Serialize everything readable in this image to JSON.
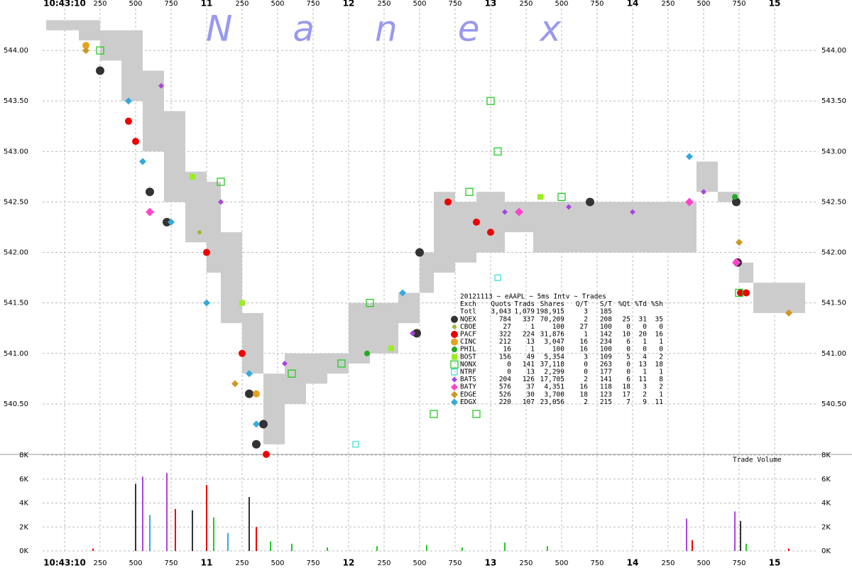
{
  "chart_data": {
    "type": "scatter",
    "watermark": "Nanex",
    "xlim": [
      9.845,
      15.295
    ],
    "xticks": [
      {
        "value": 10,
        "label": "10:43:10"
      },
      {
        "value": 10.25,
        "label": "250"
      },
      {
        "value": 10.5,
        "label": "500"
      },
      {
        "value": 10.75,
        "label": "750"
      },
      11,
      {
        "value": 11.25,
        "label": "250"
      },
      {
        "value": 11.5,
        "label": "500"
      },
      {
        "value": 11.75,
        "label": "750"
      },
      12,
      {
        "value": 12.25,
        "label": "250"
      },
      {
        "value": 12.5,
        "label": "500"
      },
      {
        "value": 12.75,
        "label": "750"
      },
      13,
      {
        "value": 13.25,
        "label": "250"
      },
      {
        "value": 13.5,
        "label": "500"
      },
      {
        "value": 13.75,
        "label": "750"
      },
      14,
      {
        "value": 14.25,
        "label": "250"
      },
      {
        "value": 14.5,
        "label": "500"
      },
      {
        "value": 14.75,
        "label": "750"
      },
      15
    ],
    "ylim": [
      540.0,
      544.5
    ],
    "yticks": [
      {
        "value": 540.5,
        "label": "540.50"
      },
      {
        "value": 541,
        "label": "541.00"
      },
      {
        "value": 541.5,
        "label": "541.50"
      },
      {
        "value": 542,
        "label": "542.00"
      },
      {
        "value": 542.5,
        "label": "542.50"
      },
      {
        "value": 543,
        "label": "543.00"
      },
      {
        "value": 543.5,
        "label": "543.50"
      },
      {
        "value": 544,
        "label": "544.00"
      }
    ],
    "grid": true,
    "spread": {
      "color": "#cccccc",
      "x": [
        9.87,
        10.1,
        10.25,
        10.4,
        10.55,
        10.7,
        10.85,
        11.0,
        11.1,
        11.25,
        11.4,
        11.55,
        11.7,
        11.85,
        12.0,
        12.15,
        12.35,
        12.5,
        12.6,
        12.75,
        12.9,
        13.1,
        13.3,
        13.5,
        13.7,
        13.9,
        14.1,
        14.35,
        14.45,
        14.6,
        14.75,
        14.85,
        15.0,
        15.2
      ],
      "ask": [
        544.3,
        544.3,
        544.2,
        544.2,
        543.8,
        543.4,
        542.8,
        542.7,
        542.2,
        541.4,
        540.8,
        541.0,
        541.0,
        541.0,
        541.5,
        541.5,
        541.6,
        542.0,
        542.6,
        542.5,
        542.6,
        542.5,
        542.5,
        542.5,
        542.5,
        542.5,
        542.5,
        542.5,
        542.9,
        542.6,
        541.9,
        541.7,
        541.7,
        541.7
      ],
      "bid": [
        544.2,
        544.1,
        543.9,
        543.5,
        543.0,
        542.5,
        542.1,
        541.8,
        541.3,
        540.8,
        540.1,
        540.5,
        540.7,
        540.8,
        540.9,
        541.0,
        541.3,
        541.6,
        541.8,
        541.9,
        542.0,
        542.2,
        542.0,
        542.0,
        542.0,
        542.0,
        542.0,
        542.0,
        542.6,
        542.5,
        541.7,
        541.4,
        541.4,
        541.4
      ]
    },
    "table_title": "20121113 ~ eAAPL ~ 5ms Intv ~ Trades",
    "table_header": [
      "Exch",
      "Quots",
      "Trads",
      "Shares",
      "Q/T",
      "S/T",
      "%Qt",
      "%Td",
      "%Sh"
    ],
    "table_total": [
      "Totl",
      "3,043",
      "1,079",
      "198,915",
      "3",
      "185"
    ],
    "series": [
      {
        "name": "NQEX",
        "color": "#333333",
        "marker": "circle",
        "size": 6,
        "stats": [
          "784",
          "337",
          "70,209",
          "2",
          "208",
          "25",
          "31",
          "35"
        ],
        "x": [
          10.25,
          10.6,
          10.72,
          11.3,
          11.4,
          11.35,
          12.5,
          12.48,
          13.7,
          14.73,
          14.74
        ],
        "values": [
          543.8,
          542.6,
          542.3,
          540.6,
          540.3,
          540.1,
          542.0,
          541.2,
          542.5,
          542.5,
          541.9
        ]
      },
      {
        "name": "CBOE",
        "color": "#99bb33",
        "marker": "circle",
        "size": 3,
        "stats": [
          "27",
          "1",
          "100",
          "27",
          "100",
          "0",
          "0",
          "0"
        ],
        "x": [
          10.95
        ],
        "values": [
          542.2
        ]
      },
      {
        "name": "PACF",
        "color": "#ee0000",
        "marker": "circle",
        "size": 5,
        "stats": [
          "322",
          "224",
          "31,876",
          "1",
          "142",
          "10",
          "20",
          "16"
        ],
        "x": [
          10.5,
          10.45,
          11.0,
          11.25,
          11.42,
          12.7,
          12.9,
          13.0,
          14.76,
          14.8
        ],
        "values": [
          543.1,
          543.3,
          542.0,
          541.0,
          540.0,
          542.5,
          542.3,
          542.2,
          541.6,
          541.6
        ]
      },
      {
        "name": "CINC",
        "color": "#e8a020",
        "marker": "circle",
        "size": 5,
        "stats": [
          "212",
          "13",
          "3,047",
          "16",
          "234",
          "6",
          "1",
          "1"
        ],
        "x": [
          10.15,
          11.35
        ],
        "values": [
          544.05,
          540.6
        ]
      },
      {
        "name": "PHIL",
        "color": "#22aa22",
        "marker": "circle",
        "size": 4,
        "stats": [
          "16",
          "1",
          "100",
          "16",
          "100",
          "0",
          "0",
          "0"
        ],
        "x": [
          12.13,
          14.72
        ],
        "values": [
          541.0,
          542.55
        ]
      },
      {
        "name": "BOST",
        "color": "#99ee22",
        "marker": "square",
        "size": 4,
        "stats": [
          "156",
          "49",
          "5,354",
          "3",
          "109",
          "5",
          "4",
          "2"
        ],
        "x": [
          10.9,
          11.25,
          12.3,
          13.35
        ],
        "values": [
          542.75,
          541.5,
          541.05,
          542.55
        ]
      },
      {
        "name": "NONX",
        "color": "#22cc22",
        "marker": "hollow-square",
        "size": 5,
        "stats": [
          "0",
          "141",
          "37,118",
          "0",
          "263",
          "0",
          "13",
          "18"
        ],
        "x": [
          10.25,
          11.1,
          12.15,
          12.85,
          13.0,
          13.05,
          13.5,
          12.6,
          14.75,
          12.9,
          11.6,
          11.95
        ],
        "values": [
          544.0,
          542.7,
          541.5,
          542.6,
          543.5,
          543.0,
          542.55,
          540.4,
          541.6,
          540.4,
          540.8,
          540.9
        ]
      },
      {
        "name": "NTRF",
        "color": "#44dddd",
        "marker": "hollow-square",
        "size": 4,
        "stats": [
          "0",
          "13",
          "2,299",
          "0",
          "177",
          "0",
          "1",
          "1"
        ],
        "x": [
          12.05,
          13.05
        ],
        "values": [
          540.1,
          541.75
        ]
      },
      {
        "name": "BATS",
        "color": "#aa44dd",
        "marker": "diamond",
        "size": 4,
        "stats": [
          "204",
          "126",
          "17,705",
          "2",
          "141",
          "6",
          "11",
          "8"
        ],
        "x": [
          10.68,
          11.1,
          11.55,
          12.45,
          13.1,
          13.55,
          14.0,
          14.5
        ],
        "values": [
          543.65,
          542.5,
          540.9,
          541.2,
          542.4,
          542.45,
          542.4,
          542.6
        ]
      },
      {
        "name": "BATY",
        "color": "#ff44cc",
        "marker": "diamond",
        "size": 6,
        "stats": [
          "576",
          "37",
          "4,351",
          "16",
          "118",
          "18",
          "3",
          "2"
        ],
        "x": [
          10.6,
          13.2,
          14.4,
          14.73
        ],
        "values": [
          542.4,
          542.4,
          542.5,
          541.9
        ]
      },
      {
        "name": "EDGE",
        "color": "#cc9922",
        "marker": "diamond",
        "size": 5,
        "stats": [
          "526",
          "30",
          "3,700",
          "18",
          "123",
          "17",
          "2",
          "1"
        ],
        "x": [
          10.15,
          11.2,
          14.75,
          15.1
        ],
        "values": [
          544.0,
          540.7,
          542.1,
          541.4
        ]
      },
      {
        "name": "EDGX",
        "color": "#33aadd",
        "marker": "diamond",
        "size": 5,
        "stats": [
          "220",
          "107",
          "23,056",
          "2",
          "215",
          "7",
          "9",
          "11"
        ],
        "x": [
          10.45,
          10.55,
          10.75,
          11.0,
          11.3,
          11.35,
          12.38,
          14.4
        ],
        "values": [
          543.5,
          542.9,
          542.3,
          541.5,
          540.8,
          540.3,
          541.6,
          542.95
        ]
      }
    ],
    "volume": {
      "label": "Trade Volume",
      "ylim": [
        0,
        8000
      ],
      "yticks": [
        {
          "value": 0,
          "label": "0K"
        },
        {
          "value": 2000,
          "label": "2K"
        },
        {
          "value": 4000,
          "label": "4K"
        },
        {
          "value": 6000,
          "label": "6K"
        },
        {
          "value": 8000,
          "label": "8K"
        }
      ],
      "x": [
        10.2,
        10.5,
        10.55,
        10.6,
        10.72,
        10.78,
        10.9,
        11.0,
        11.05,
        11.15,
        11.3,
        11.35,
        11.45,
        11.6,
        11.85,
        12.2,
        12.55,
        12.8,
        13.1,
        13.4,
        14.38,
        14.42,
        14.72,
        14.76,
        14.8,
        15.1
      ],
      "values": [
        200,
        5600,
        6200,
        3000,
        6500,
        3500,
        3400,
        5500,
        2800,
        1500,
        4500,
        2000,
        800,
        600,
        300,
        400,
        500,
        300,
        700,
        400,
        2700,
        900,
        3300,
        2500,
        600,
        200
      ],
      "colors": [
        "#ee0000",
        "#333333",
        "#aa44dd",
        "#33aadd",
        "#aa44dd",
        "#ee0000",
        "#333333",
        "#ee0000",
        "#22cc22",
        "#33aadd",
        "#333333",
        "#ee0000",
        "#22cc22",
        "#22cc22",
        "#22cc22",
        "#22cc22",
        "#22cc22",
        "#22cc22",
        "#22cc22",
        "#22cc22",
        "#aa44dd",
        "#ee0000",
        "#aa44dd",
        "#333333",
        "#22cc22",
        "#ee0000"
      ]
    }
  }
}
